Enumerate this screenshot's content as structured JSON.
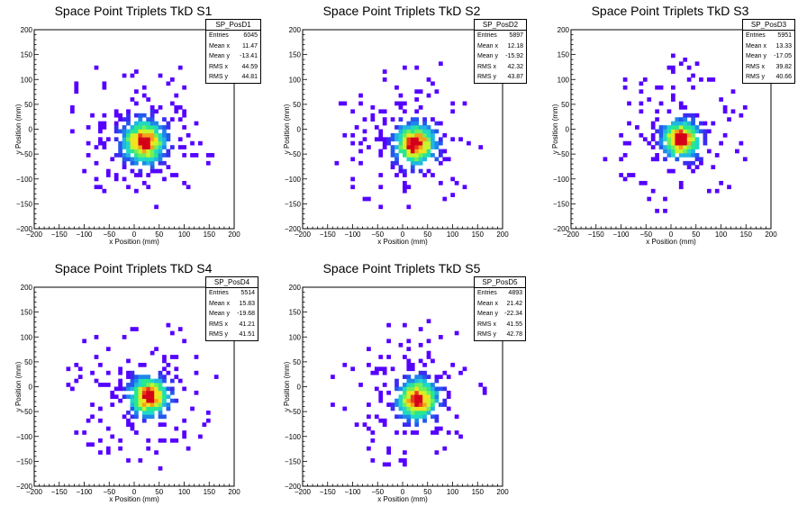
{
  "colors": {
    "palette": [
      "#5500ff",
      "#3a2cf2",
      "#2458ee",
      "#1f86ea",
      "#22b6e2",
      "#1fd9c4",
      "#27e88e",
      "#6ff05a",
      "#c7f42c",
      "#f2e31e",
      "#f7a01a",
      "#ea3b1c",
      "#d4001a"
    ],
    "axis": "#000000"
  },
  "chart_data": [
    {
      "type": "heatmap",
      "title": "Space Point Triplets TkD S1",
      "xlabel": "x Position (mm)",
      "ylabel": "y Position (mm)",
      "xlim": [
        -200,
        200
      ],
      "ylim": [
        -200,
        200
      ],
      "x_ticks": [
        "−200",
        "−150",
        "−100",
        "−50",
        "0",
        "50",
        "100",
        "150",
        "200"
      ],
      "y_ticks": [
        "−200",
        "−150",
        "−100",
        "−50",
        "0",
        "50",
        "100",
        "150",
        "200"
      ],
      "stats": {
        "name": "SP_PosD1",
        "rows": [
          {
            "label": "Entries",
            "value": "6045"
          },
          {
            "label": "Mean x",
            "value": "11.47"
          },
          {
            "label": "Mean y",
            "value": "-13.41"
          },
          {
            "label": "RMS x",
            "value": "44.59"
          },
          {
            "label": "RMS y",
            "value": "44.81"
          }
        ]
      },
      "entries": 6045,
      "mean_x": 11.47,
      "mean_y": -13.41,
      "rms_x": 44.59,
      "rms_y": 44.81,
      "peak": [
        20,
        -25
      ]
    },
    {
      "type": "heatmap",
      "title": "Space Point Triplets TkD S2",
      "xlabel": "x Position (mm)",
      "ylabel": "y Position (mm)",
      "xlim": [
        -200,
        200
      ],
      "ylim": [
        -200,
        200
      ],
      "x_ticks": [
        "−200",
        "−150",
        "−100",
        "−50",
        "0",
        "50",
        "100",
        "150",
        "200"
      ],
      "y_ticks": [
        "−200",
        "−150",
        "−100",
        "−50",
        "0",
        "50",
        "100",
        "150",
        "200"
      ],
      "stats": {
        "name": "SP_PosD2",
        "rows": [
          {
            "label": "Entries",
            "value": "5897"
          },
          {
            "label": "Mean x",
            "value": "12.18"
          },
          {
            "label": "Mean y",
            "value": "-15.92"
          },
          {
            "label": "RMS x",
            "value": "42.32"
          },
          {
            "label": "RMS y",
            "value": "43.87"
          }
        ]
      },
      "entries": 5897,
      "mean_x": 12.18,
      "mean_y": -15.92,
      "rms_x": 42.32,
      "rms_y": 43.87,
      "peak": [
        25,
        -30
      ]
    },
    {
      "type": "heatmap",
      "title": "Space Point Triplets TkD S3",
      "xlabel": "x Position (mm)",
      "ylabel": "y Position (mm)",
      "xlim": [
        -200,
        200
      ],
      "ylim": [
        -200,
        200
      ],
      "x_ticks": [
        "−200",
        "−150",
        "−100",
        "−50",
        "0",
        "50",
        "100",
        "150",
        "200"
      ],
      "y_ticks": [
        "−200",
        "−150",
        "−100",
        "−50",
        "0",
        "50",
        "100",
        "150",
        "200"
      ],
      "stats": {
        "name": "SP_PosD3",
        "rows": [
          {
            "label": "Entries",
            "value": "5951"
          },
          {
            "label": "Mean x",
            "value": "13.33"
          },
          {
            "label": "Mean y",
            "value": "-17.05"
          },
          {
            "label": "RMS x",
            "value": "39.82"
          },
          {
            "label": "RMS y",
            "value": "40.66"
          }
        ]
      },
      "entries": 5951,
      "mean_x": 13.33,
      "mean_y": -17.05,
      "rms_x": 39.82,
      "rms_y": 40.66,
      "peak": [
        20,
        -20
      ]
    },
    {
      "type": "heatmap",
      "title": "Space Point Triplets TkD S4",
      "xlabel": "x Position (mm)",
      "ylabel": "y Position (mm)",
      "xlim": [
        -200,
        200
      ],
      "ylim": [
        -200,
        200
      ],
      "x_ticks": [
        "−200",
        "−150",
        "−100",
        "−50",
        "0",
        "50",
        "100",
        "150",
        "200"
      ],
      "y_ticks": [
        "−200",
        "−150",
        "−100",
        "−50",
        "0",
        "50",
        "100",
        "150",
        "200"
      ],
      "stats": {
        "name": "SP_PosD4",
        "rows": [
          {
            "label": "Entries",
            "value": "5514"
          },
          {
            "label": "Mean x",
            "value": "15.83"
          },
          {
            "label": "Mean y",
            "value": "-19.68"
          },
          {
            "label": "RMS x",
            "value": "41.21"
          },
          {
            "label": "RMS y",
            "value": "41.51"
          }
        ]
      },
      "entries": 5514,
      "mean_x": 15.83,
      "mean_y": -19.68,
      "rms_x": 41.21,
      "rms_y": 41.51,
      "peak": [
        30,
        -20
      ]
    },
    {
      "type": "heatmap",
      "title": "Space Point Triplets TkD S5",
      "xlabel": "x Position (mm)",
      "ylabel": "y Position (mm)",
      "xlim": [
        -200,
        200
      ],
      "ylim": [
        -200,
        200
      ],
      "x_ticks": [
        "−200",
        "−150",
        "−100",
        "−50",
        "0",
        "50",
        "100",
        "150",
        "200"
      ],
      "y_ticks": [
        "−200",
        "−150",
        "−100",
        "−50",
        "0",
        "50",
        "100",
        "150",
        "200"
      ],
      "stats": {
        "name": "SP_PosD5",
        "rows": [
          {
            "label": "Entries",
            "value": "4893"
          },
          {
            "label": "Mean x",
            "value": "21.42"
          },
          {
            "label": "Mean y",
            "value": "-22.34"
          },
          {
            "label": "RMS x",
            "value": "41.55"
          },
          {
            "label": "RMS y",
            "value": "42.78"
          }
        ]
      },
      "entries": 4893,
      "mean_x": 21.42,
      "mean_y": -22.34,
      "rms_x": 41.55,
      "rms_y": 42.78,
      "peak": [
        30,
        -25
      ]
    }
  ]
}
